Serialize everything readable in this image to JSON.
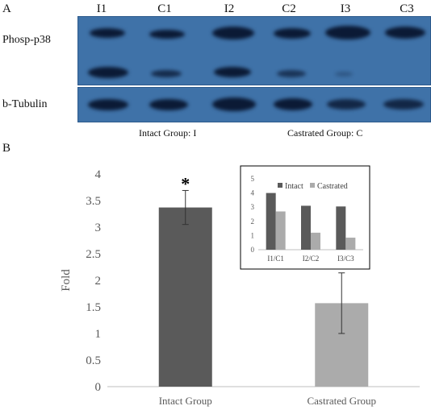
{
  "panel_a": {
    "label": "A",
    "lanes": [
      "I1",
      "C1",
      "I2",
      "C2",
      "I3",
      "C3"
    ],
    "rows": [
      "Phosp-p38",
      "b-Tubulin"
    ],
    "group_captions": [
      "Intact Group:  I",
      "Castrated Group:  C"
    ]
  },
  "panel_b": {
    "label": "B"
  },
  "chart_data": [
    {
      "type": "bar",
      "categories": [
        "Intact Group",
        "Castrated Group"
      ],
      "values": [
        3.37,
        1.57
      ],
      "error": [
        0.32,
        0.57
      ],
      "annotations": [
        "*"
      ],
      "xlabel": "",
      "ylabel": "Fold",
      "ylim": [
        0,
        4
      ],
      "yticks": [
        "0",
        "0.5",
        "1",
        "1.5",
        "2",
        "2.5",
        "3",
        "3.5",
        "4"
      ],
      "colors": [
        "#5a5a5a",
        "#ababab"
      ],
      "grid": false
    },
    {
      "type": "bar",
      "categories": [
        "I1/C1",
        "I2/C2",
        "I3/C3"
      ],
      "series": [
        {
          "name": "Intact",
          "values": [
            4.0,
            3.1,
            3.05
          ]
        },
        {
          "name": "Castrated",
          "values": [
            2.7,
            1.2,
            0.85
          ]
        }
      ],
      "ylim": [
        0,
        5
      ],
      "yticks": [
        "0",
        "1",
        "2",
        "3",
        "4",
        "5"
      ],
      "legend": "top",
      "colors": [
        "#5a5a5a",
        "#ababab"
      ],
      "grid": false
    }
  ]
}
